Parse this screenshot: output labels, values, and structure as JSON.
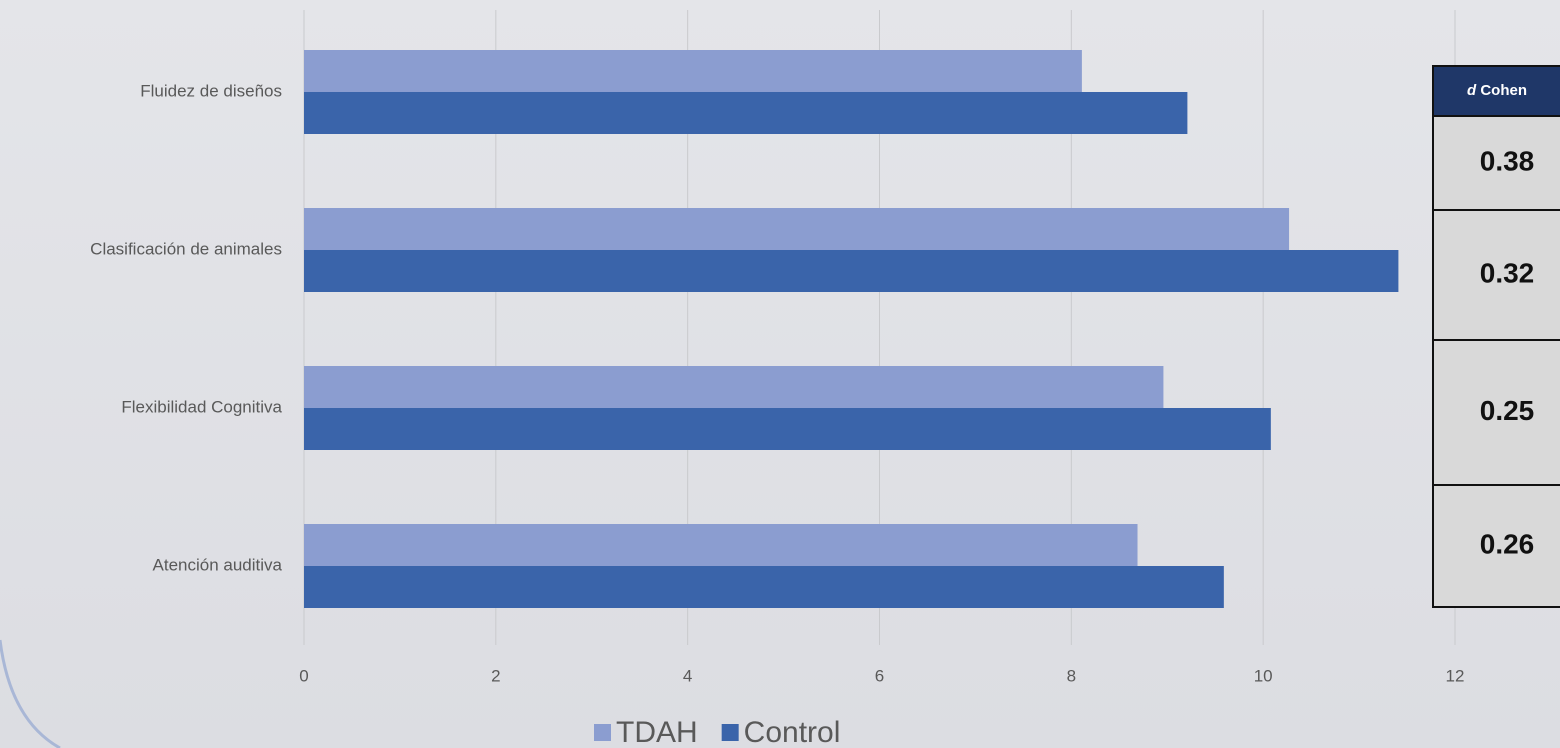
{
  "chart_data": {
    "type": "barh",
    "categories": [
      "Fluidez de diseños",
      "Clasificación de animales",
      "Flexibilidad Cognitiva",
      "Atención auditiva"
    ],
    "series": [
      {
        "name": "TDAH",
        "color": "#8b9dd0",
        "values": [
          8.11,
          10.27,
          8.96,
          8.69
        ]
      },
      {
        "name": "Control",
        "color": "#3a64aa",
        "values": [
          9.21,
          11.41,
          10.08,
          9.59
        ]
      }
    ],
    "xlim": [
      0,
      12
    ],
    "xticks": [
      0,
      2,
      4,
      6,
      8,
      10,
      12
    ],
    "grid": true,
    "legend": "bottom"
  },
  "table": {
    "header_italic": "d",
    "header": "Cohen",
    "rows": [
      "0.38",
      "0.32",
      "0.25",
      "0.26"
    ]
  }
}
